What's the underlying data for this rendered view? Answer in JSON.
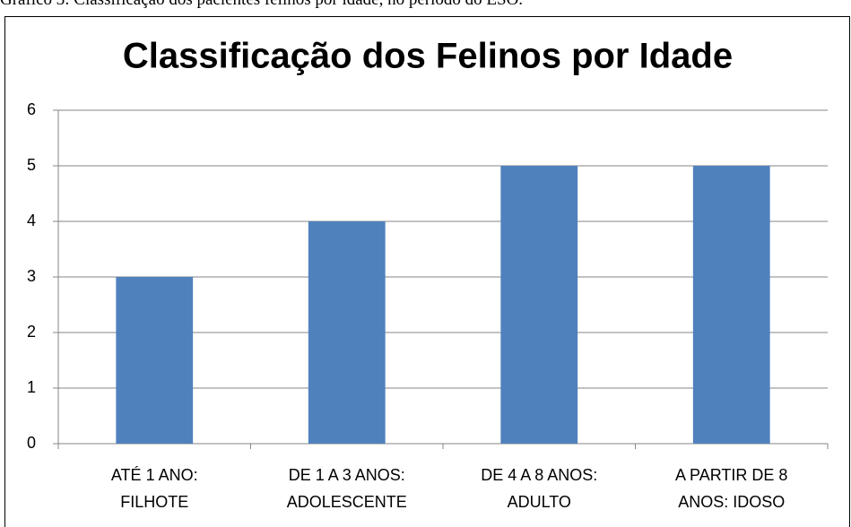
{
  "caption": "Gráfico 3: Classificação dos pacientes felinos por idade, no período do ESO.",
  "chart_data": {
    "type": "bar",
    "title": "Classificação dos Felinos por Idade",
    "categories": [
      "ATÉ 1 ANO:\nFILHOTE",
      "DE 1 A 3 ANOS:\nADOLESCENTE",
      "DE 4 A 8 ANOS:\nADULTO",
      "A PARTIR DE 8\nANOS: IDOSO"
    ],
    "values": [
      3,
      4,
      5,
      5
    ],
    "color": "#4f81bd",
    "ylim": [
      0,
      6
    ],
    "yticks": [
      0,
      1,
      2,
      3,
      4,
      5,
      6
    ],
    "grid": true
  }
}
